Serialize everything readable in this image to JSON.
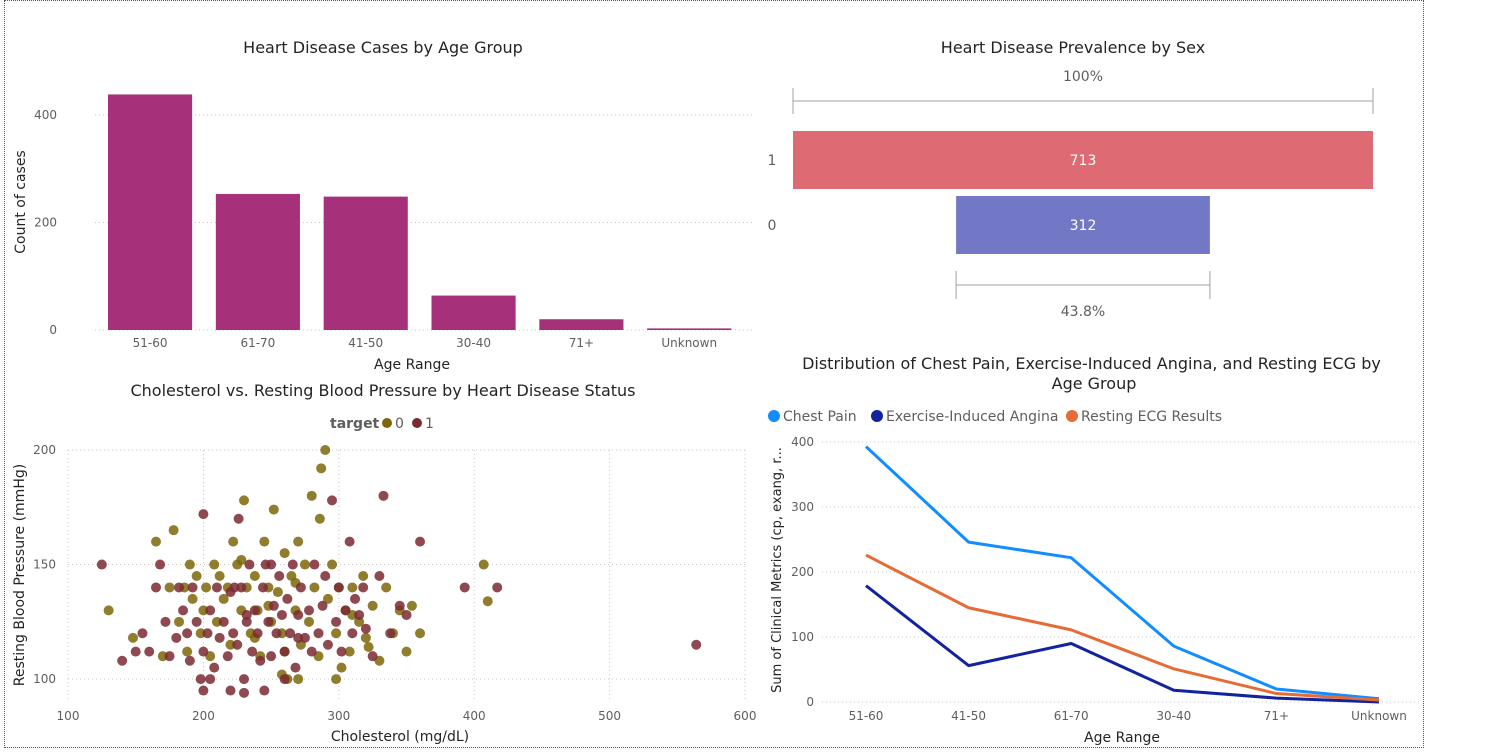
{
  "chart_data": [
    {
      "type": "bar",
      "title": "Heart Disease Cases by Age Group",
      "xlabel": "Age Range",
      "ylabel": "Count of cases",
      "categories": [
        "51-60",
        "61-70",
        "41-50",
        "30-40",
        "71+",
        "Unknown"
      ],
      "values": [
        438,
        253,
        248,
        64,
        20,
        3
      ],
      "yticks": [
        0,
        200,
        400
      ],
      "ylim": [
        0,
        450
      ],
      "color": "#a6317a"
    },
    {
      "type": "bar",
      "subtype": "funnel",
      "title": "Heart Disease Prevalence by Sex",
      "categories": [
        "1",
        "0"
      ],
      "values": [
        713,
        312
      ],
      "value_labels": [
        "713",
        "312"
      ],
      "top_label": "100%",
      "bottom_label": "43.8%",
      "colors": [
        "#de6a73",
        "#7378c6"
      ]
    },
    {
      "type": "scatter",
      "title": "Cholesterol vs. Resting Blood Pressure by Heart Disease Status",
      "xlabel": "Cholesterol (mg/dL)",
      "ylabel": "Resting Blood Pressure (mmHg)",
      "xlim": [
        100,
        600
      ],
      "ylim": [
        90,
        200
      ],
      "xticks": [
        100,
        200,
        300,
        400,
        500,
        600
      ],
      "yticks": [
        100,
        150,
        200
      ],
      "legend_title": "target",
      "series": [
        {
          "name": "0",
          "color": "#7d6608",
          "points": [
            [
              130,
              130
            ],
            [
              148,
              118
            ],
            [
              165,
              160
            ],
            [
              170,
              110
            ],
            [
              175,
              140
            ],
            [
              178,
              165
            ],
            [
              182,
              125
            ],
            [
              186,
              140
            ],
            [
              190,
              150
            ],
            [
              192,
              135
            ],
            [
              195,
              145
            ],
            [
              198,
              120
            ],
            [
              200,
              130
            ],
            [
              202,
              140
            ],
            [
              205,
              110
            ],
            [
              208,
              150
            ],
            [
              210,
              125
            ],
            [
              212,
              145
            ],
            [
              215,
              135
            ],
            [
              218,
              140
            ],
            [
              220,
              115
            ],
            [
              222,
              160
            ],
            [
              225,
              150
            ],
            [
              228,
              130
            ],
            [
              230,
              178
            ],
            [
              232,
              140
            ],
            [
              235,
              120
            ],
            [
              238,
              145
            ],
            [
              240,
              130
            ],
            [
              242,
              110
            ],
            [
              245,
              160
            ],
            [
              248,
              140
            ],
            [
              250,
              125
            ],
            [
              252,
              174
            ],
            [
              255,
              138
            ],
            [
              258,
              120
            ],
            [
              260,
              155
            ],
            [
              262,
              100
            ],
            [
              265,
              145
            ],
            [
              268,
              130
            ],
            [
              270,
              160
            ],
            [
              272,
              115
            ],
            [
              275,
              150
            ],
            [
              278,
              125
            ],
            [
              280,
              180
            ],
            [
              282,
              140
            ],
            [
              285,
              110
            ],
            [
              287,
              192
            ],
            [
              290,
              200
            ],
            [
              292,
              135
            ],
            [
              295,
              150
            ],
            [
              298,
              120
            ],
            [
              300,
              140
            ],
            [
              302,
              105
            ],
            [
              305,
              130
            ],
            [
              308,
              112
            ],
            [
              310,
              140
            ],
            [
              315,
              125
            ],
            [
              318,
              145
            ],
            [
              320,
              118
            ],
            [
              325,
              132
            ],
            [
              330,
              108
            ],
            [
              335,
              140
            ],
            [
              340,
              120
            ],
            [
              345,
              130
            ],
            [
              350,
              112
            ],
            [
              354,
              132
            ],
            [
              360,
              120
            ],
            [
              407,
              150
            ],
            [
              410,
              134
            ],
            [
              260,
              112
            ],
            [
              270,
              100
            ],
            [
              298,
              100
            ],
            [
              188,
              112
            ],
            [
              258,
              102
            ],
            [
              238,
              118
            ],
            [
              228,
              152
            ],
            [
              248,
              132
            ],
            [
              268,
              142
            ],
            [
              286,
              170
            ],
            [
              310,
              128
            ],
            [
              322,
              114
            ]
          ]
        },
        {
          "name": "1",
          "color": "#7b2a32",
          "points": [
            [
              125,
              150
            ],
            [
              140,
              108
            ],
            [
              150,
              112
            ],
            [
              155,
              120
            ],
            [
              160,
              112
            ],
            [
              165,
              140
            ],
            [
              168,
              150
            ],
            [
              172,
              125
            ],
            [
              175,
              110
            ],
            [
              180,
              118
            ],
            [
              182,
              140
            ],
            [
              185,
              130
            ],
            [
              188,
              120
            ],
            [
              190,
              108
            ],
            [
              192,
              140
            ],
            [
              195,
              125
            ],
            [
              198,
              100
            ],
            [
              200,
              172
            ],
            [
              200,
              112
            ],
            [
              203,
              120
            ],
            [
              205,
              130
            ],
            [
              208,
              105
            ],
            [
              210,
              140
            ],
            [
              212,
              118
            ],
            [
              215,
              125
            ],
            [
              218,
              110
            ],
            [
              220,
              138
            ],
            [
              222,
              120
            ],
            [
              225,
              115
            ],
            [
              226,
              170
            ],
            [
              228,
              140
            ],
            [
              230,
              100
            ],
            [
              232,
              125
            ],
            [
              234,
              150
            ],
            [
              236,
              112
            ],
            [
              238,
              130
            ],
            [
              240,
              120
            ],
            [
              242,
              108
            ],
            [
              244,
              140
            ],
            [
              246,
              150
            ],
            [
              248,
              125
            ],
            [
              250,
              110
            ],
            [
              252,
              132
            ],
            [
              254,
              120
            ],
            [
              256,
              145
            ],
            [
              258,
              128
            ],
            [
              260,
              112
            ],
            [
              262,
              135
            ],
            [
              264,
              120
            ],
            [
              266,
              150
            ],
            [
              268,
              105
            ],
            [
              270,
              128
            ],
            [
              272,
              140
            ],
            [
              275,
              118
            ],
            [
              278,
              130
            ],
            [
              280,
              112
            ],
            [
              282,
              150
            ],
            [
              285,
              120
            ],
            [
              288,
              132
            ],
            [
              290,
              145
            ],
            [
              292,
              115
            ],
            [
              295,
              178
            ],
            [
              298,
              125
            ],
            [
              300,
              140
            ],
            [
              302,
              112
            ],
            [
              305,
              130
            ],
            [
              308,
              160
            ],
            [
              310,
              120
            ],
            [
              312,
              135
            ],
            [
              315,
              128
            ],
            [
              318,
              140
            ],
            [
              320,
              122
            ],
            [
              325,
              110
            ],
            [
              330,
              145
            ],
            [
              333,
              180
            ],
            [
              338,
              120
            ],
            [
              345,
              132
            ],
            [
              350,
              128
            ],
            [
              360,
              160
            ],
            [
              393,
              140
            ],
            [
              417,
              140
            ],
            [
              564,
              115
            ],
            [
              220,
              95
            ],
            [
              230,
              94
            ],
            [
              200,
              95
            ],
            [
              205,
              100
            ],
            [
              245,
              95
            ],
            [
              260,
              100
            ],
            [
              270,
              118
            ],
            [
              250,
              150
            ],
            [
              223,
              140
            ],
            [
              232,
              128
            ]
          ]
        }
      ]
    },
    {
      "type": "line",
      "title": "Distribution of Chest Pain, Exercise-Induced Angina, and Resting ECG by Age Group",
      "xlabel": "Age Range",
      "ylabel": "Sum of Clinical Metrics (cp, exang, r...",
      "categories": [
        "51-60",
        "41-50",
        "61-70",
        "30-40",
        "71+",
        "Unknown"
      ],
      "yticks": [
        0,
        100,
        200,
        300,
        400
      ],
      "ylim": [
        0,
        400
      ],
      "series": [
        {
          "name": "Chest Pain",
          "color": "#118dff",
          "values": [
            393,
            246,
            222,
            86,
            20,
            5
          ]
        },
        {
          "name": "Exercise-Induced Angina",
          "color": "#12239e",
          "values": [
            179,
            56,
            90,
            18,
            6,
            0
          ]
        },
        {
          "name": "Resting ECG Results",
          "color": "#e66c37",
          "values": [
            226,
            145,
            111,
            51,
            13,
            3
          ]
        }
      ]
    }
  ]
}
